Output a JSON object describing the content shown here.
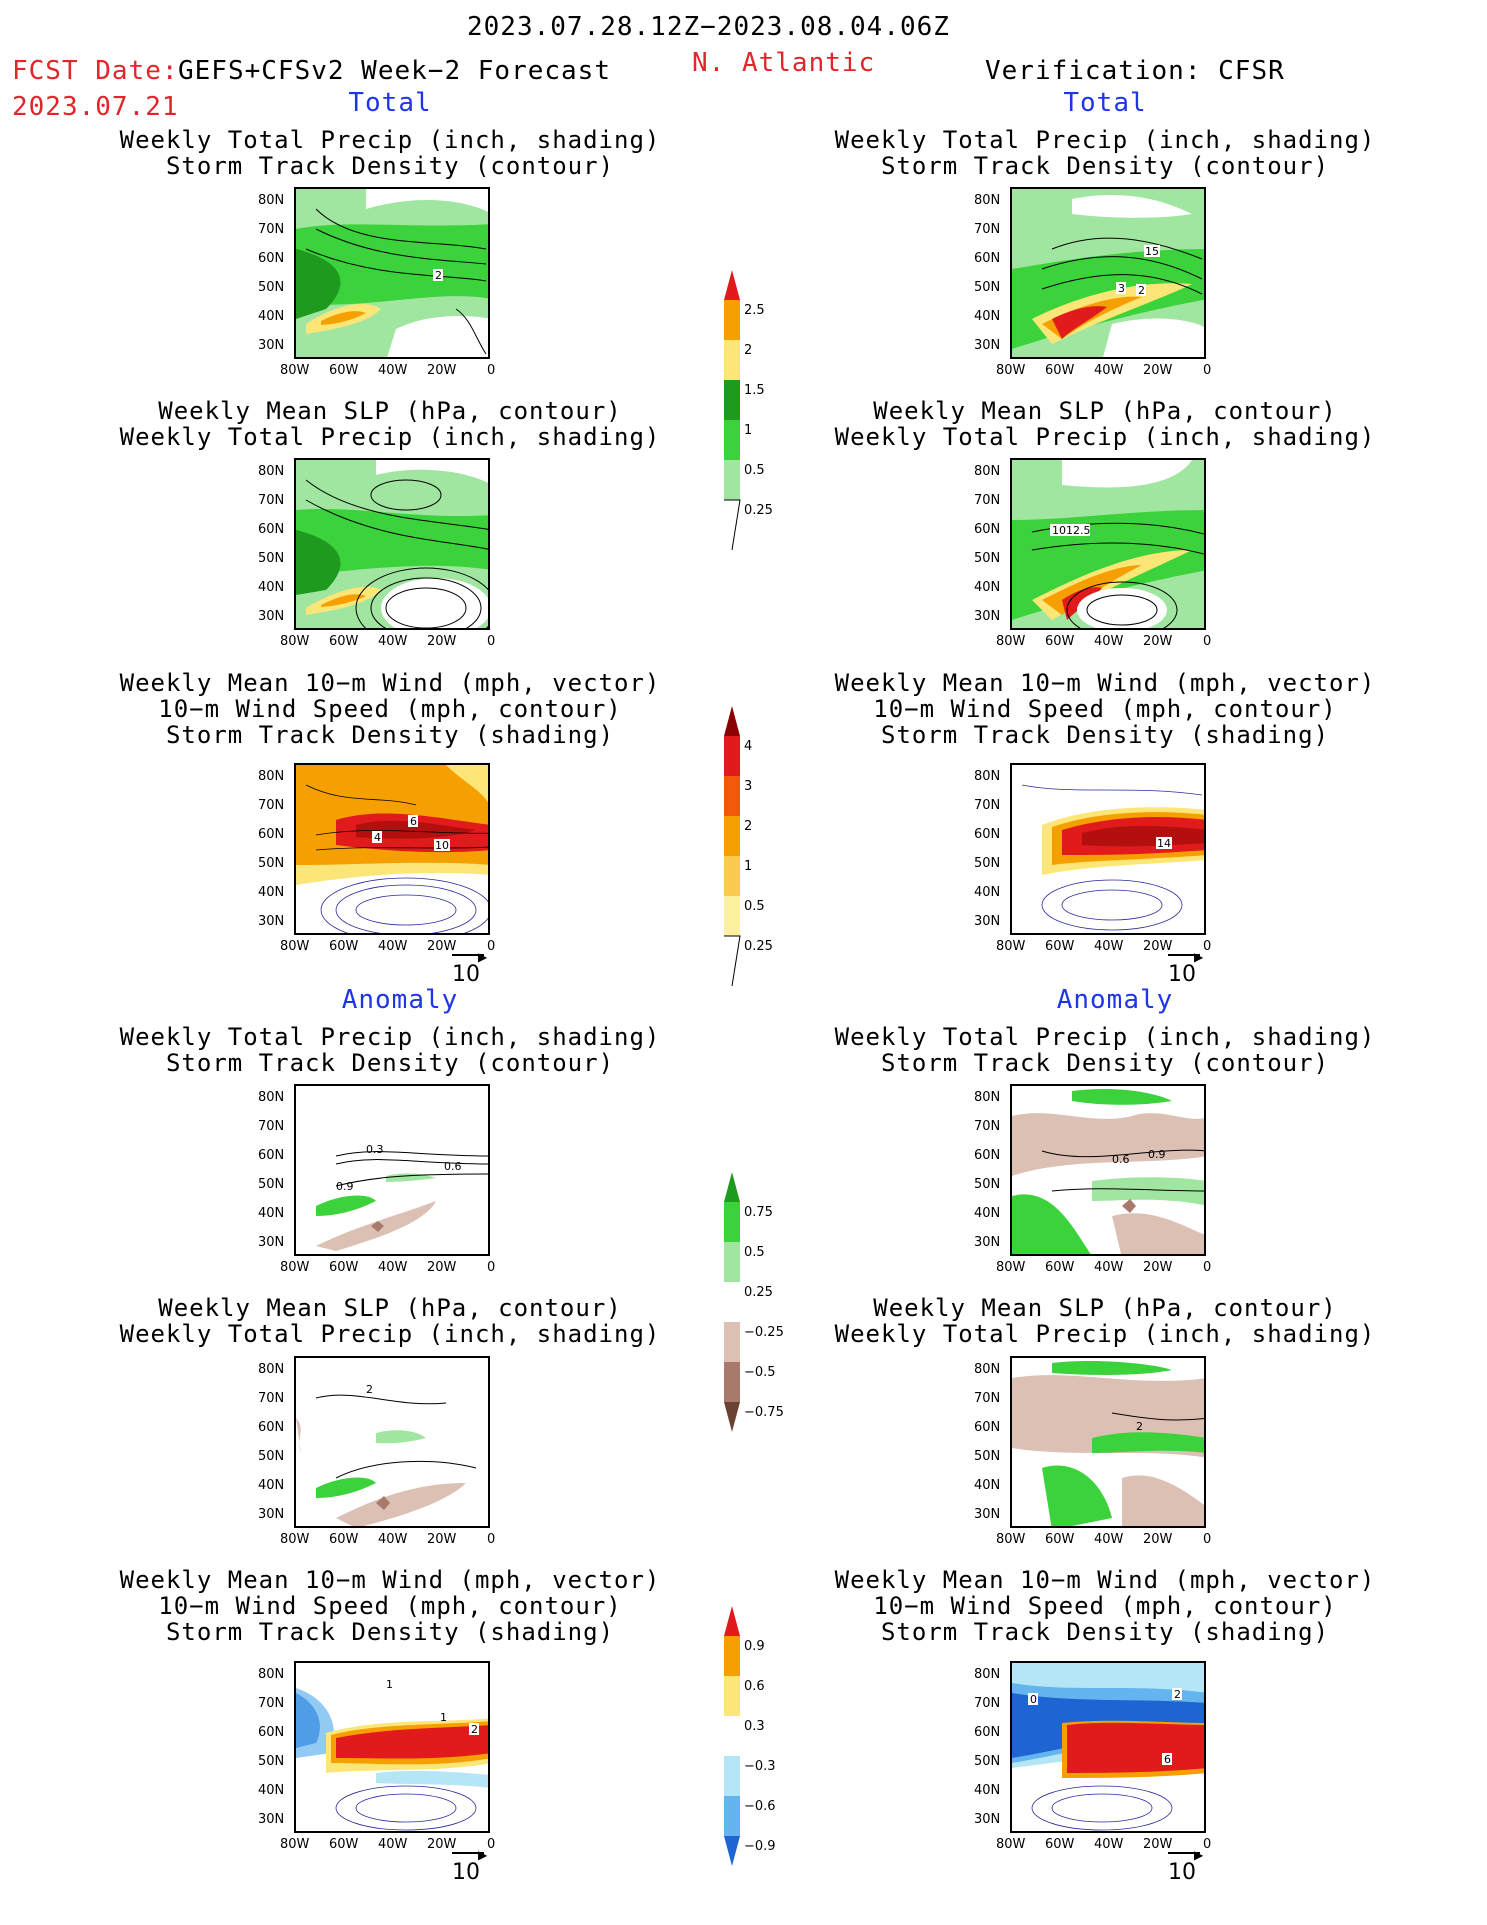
{
  "header": {
    "period": "2023.07.28.12Z−2023.08.04.06Z",
    "fcst_label": "FCST Date:",
    "fcst_model": "GEFS+CFSv2 Week−2 Forecast",
    "fcst_date": "2023.07.21",
    "region": "N. Atlantic",
    "verification": "Verification: CFSR"
  },
  "sections": {
    "total": "Total",
    "anomaly": "Anomaly"
  },
  "titles": {
    "precip_track": "Weekly Total Precip (inch, shading)\nStorm Track Density (contour)",
    "slp_precip": "Weekly Mean SLP (hPa, contour)\nWeekly Total Precip (inch, shading)",
    "wind": "Weekly Mean 10−m Wind (mph, vector)\n10−m Wind Speed (mph, contour)\nStorm Track Density (shading)"
  },
  "axes": {
    "lat": [
      "80N",
      "70N",
      "60N",
      "50N",
      "40N",
      "30N"
    ],
    "lon": [
      "80W",
      "60W",
      "40W",
      "20W",
      "0"
    ]
  },
  "ref_vector": "10",
  "colorbars": {
    "precip_total": [
      "2.5",
      "2",
      "1.5",
      "1",
      "0.5",
      "0.25"
    ],
    "track_total": [
      "4",
      "3",
      "2",
      "1",
      "0.5",
      "0.25"
    ],
    "precip_anom": [
      "0.75",
      "0.5",
      "0.25",
      "−0.25",
      "−0.5",
      "−0.75"
    ],
    "track_anom": [
      "0.9",
      "0.6",
      "0.3",
      "−0.3",
      "−0.6",
      "−0.9"
    ]
  },
  "contour_labels": {
    "l1": "2",
    "r1": [
      "15",
      "3",
      "2"
    ],
    "r2": "1012.5",
    "l3": [
      "4",
      "6",
      "10"
    ],
    "r3": "14",
    "l4": [
      "0.3",
      "0.6",
      "0.9"
    ],
    "r4": [
      "0.6",
      "0.9"
    ],
    "l5": "2",
    "r5": "2",
    "l6": [
      "1",
      "1",
      "2"
    ],
    "r6": [
      "0",
      "2",
      "6"
    ]
  },
  "colors": {
    "green_dark": "#1e9a1e",
    "green_mid": "#3cd23c",
    "green_light": "#a0e6a0",
    "yellow": "#fde678",
    "orange": "#f5a000",
    "red": "#e11b1b",
    "brown_light": "#dcc0b4",
    "brown_mid": "#a87a6c",
    "brown_dark": "#6a4232",
    "blue_light": "#b4e6f5",
    "blue_mid": "#64b4f0",
    "blue_dark": "#1e64d2"
  }
}
